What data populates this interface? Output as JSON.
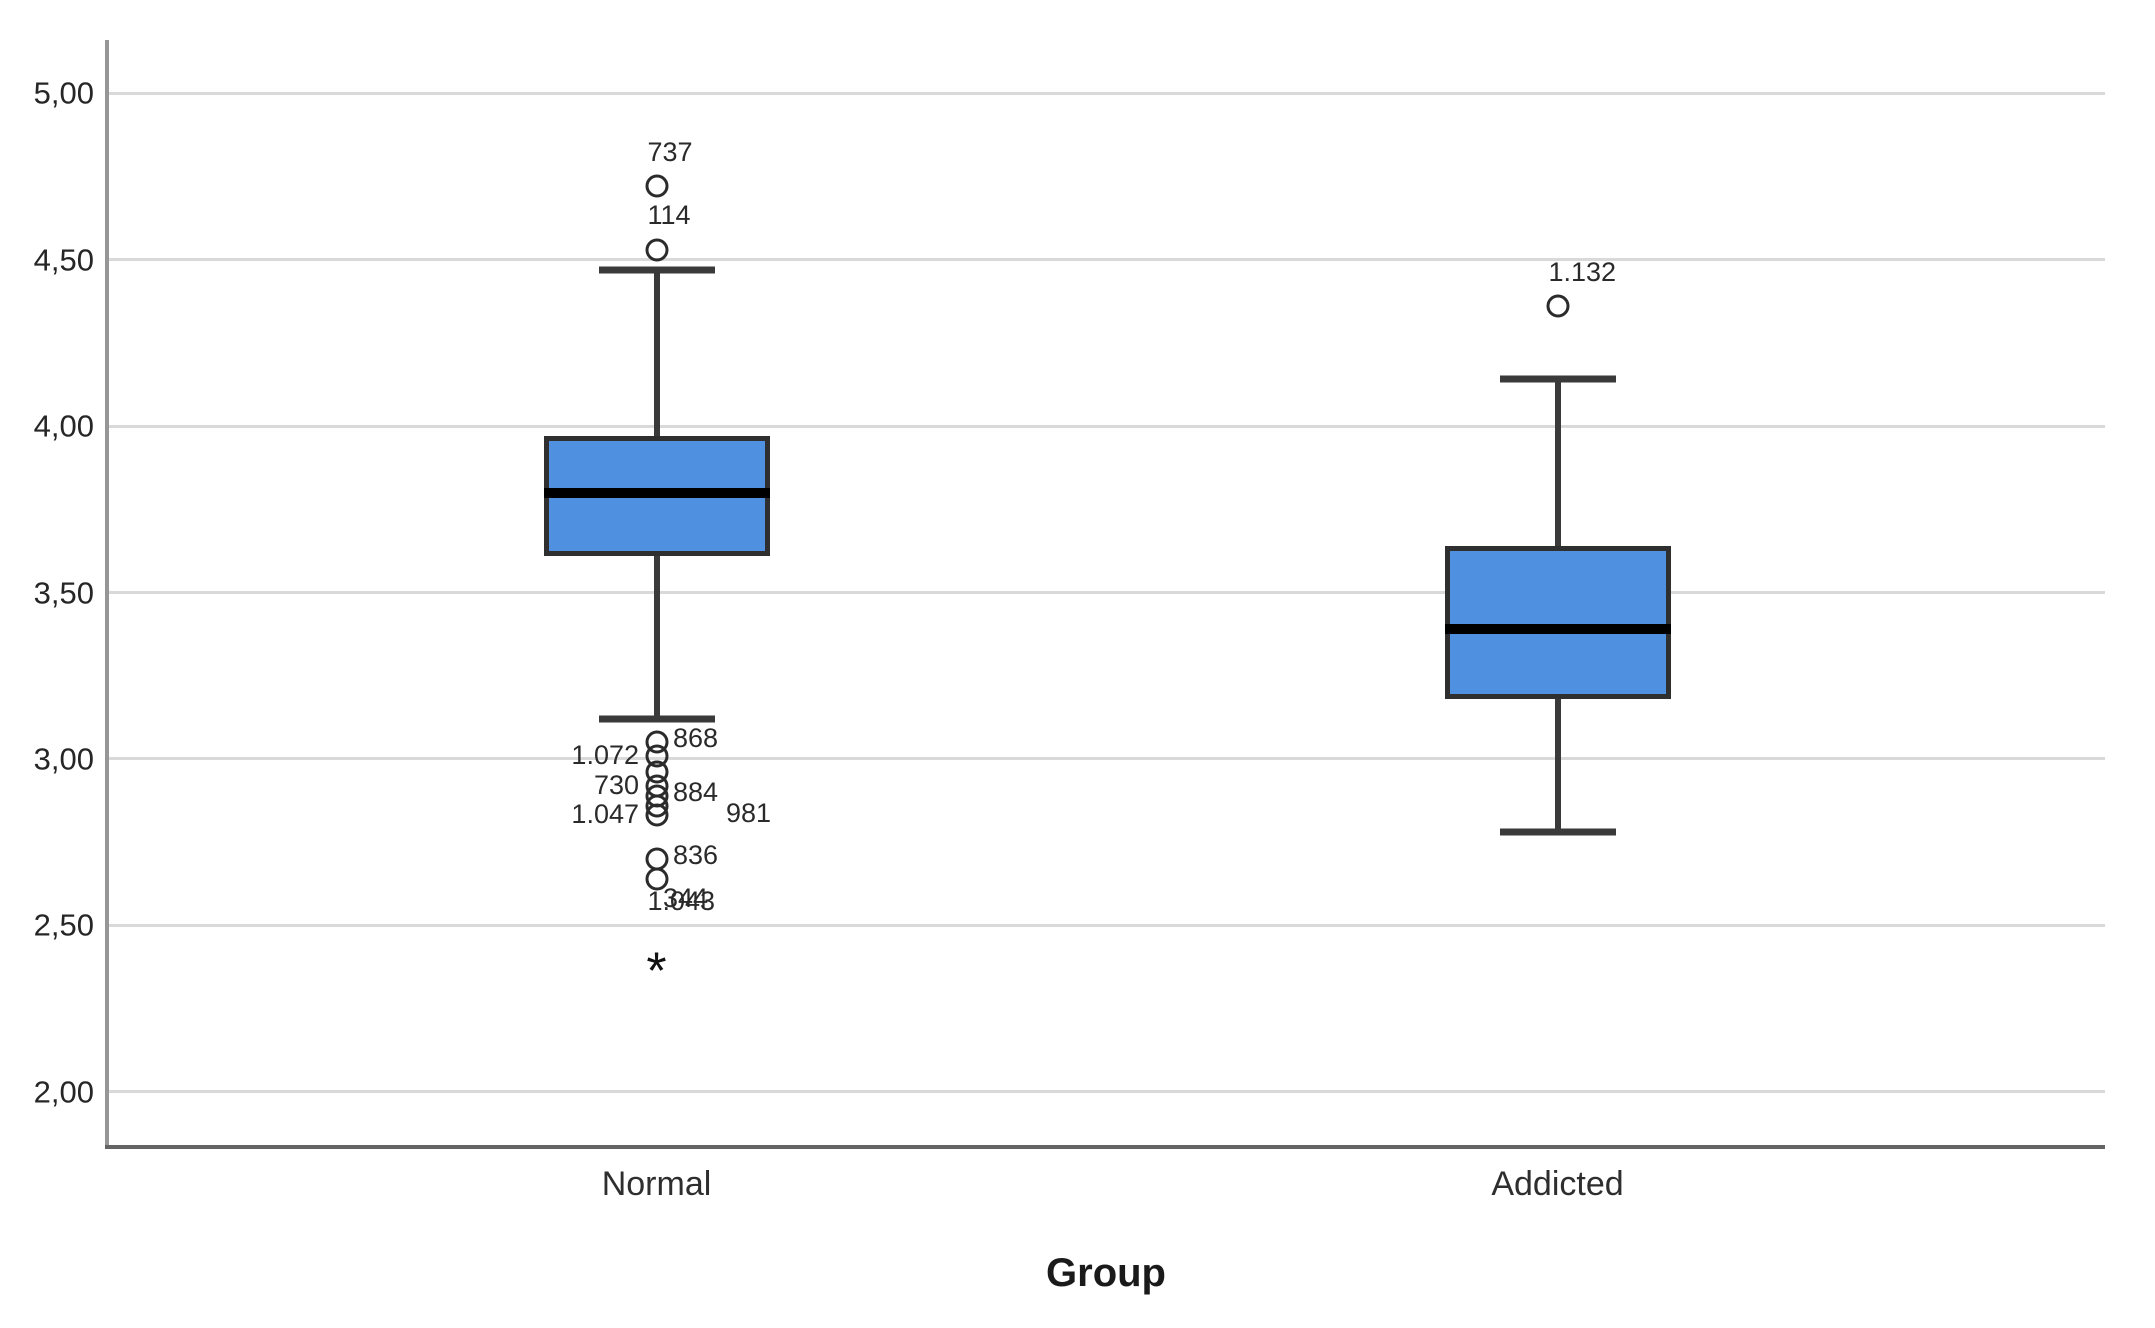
{
  "chart_data": {
    "type": "boxplot",
    "title": "",
    "xlabel": "Group",
    "ylabel": "",
    "grid": true,
    "legend": false,
    "ylim": [
      1.84,
      5.16
    ],
    "y_ticks": [
      {
        "value": 5.0,
        "label": "5,00"
      },
      {
        "value": 4.5,
        "label": "4,50"
      },
      {
        "value": 4.0,
        "label": "4,00"
      },
      {
        "value": 3.5,
        "label": "3,50"
      },
      {
        "value": 3.0,
        "label": "3,00"
      },
      {
        "value": 2.5,
        "label": "2,50"
      },
      {
        "value": 2.0,
        "label": "2,00"
      }
    ],
    "categories": [
      "Normal",
      "Addicted"
    ],
    "series": [
      {
        "name": "Normal",
        "q1": 3.61,
        "median": 3.8,
        "q3": 3.97,
        "whisker_low": 3.12,
        "whisker_high": 4.47,
        "outliers": [
          {
            "value": 4.72,
            "label": "737",
            "marker": "circle",
            "side": "above"
          },
          {
            "value": 4.53,
            "label": "114",
            "marker": "circle",
            "side": "above"
          },
          {
            "value": 3.05,
            "label": "868",
            "marker": "circle",
            "side": "right"
          },
          {
            "value": 3.01,
            "label": "1.072",
            "marker": "circle",
            "side": "left"
          },
          {
            "value": 2.96,
            "label": "",
            "marker": "circle",
            "side": "right"
          },
          {
            "value": 2.92,
            "label": "730",
            "marker": "circle",
            "side": "left"
          },
          {
            "value": 2.89,
            "label": "884",
            "marker": "circle",
            "side": "right"
          },
          {
            "value": 2.86,
            "label": "981",
            "marker": "circle",
            "side": "right_far"
          },
          {
            "value": 2.83,
            "label": "1.047",
            "marker": "circle",
            "side": "left"
          },
          {
            "value": 2.7,
            "label": "836",
            "marker": "circle",
            "side": "right"
          },
          {
            "value": 2.64,
            "label": "344",
            "marker": "circle",
            "side": "below"
          },
          {
            "value": 2.39,
            "label": "1.043",
            "marker": "asterisk",
            "side": "above"
          }
        ]
      },
      {
        "name": "Addicted",
        "q1": 3.18,
        "median": 3.39,
        "q3": 3.64,
        "whisker_low": 2.78,
        "whisker_high": 4.14,
        "outliers": [
          {
            "value": 4.36,
            "label": "1.132",
            "marker": "circle",
            "side": "above"
          }
        ]
      }
    ],
    "colors": {
      "box_fill": "#4f91e0",
      "box_border": "#2f2f2f",
      "median": "#000000",
      "whisker": "#3a3a3a",
      "gridline": "#d9d9d9",
      "y_axis": "#969696",
      "x_axis": "#646464",
      "text": "#262626"
    }
  }
}
